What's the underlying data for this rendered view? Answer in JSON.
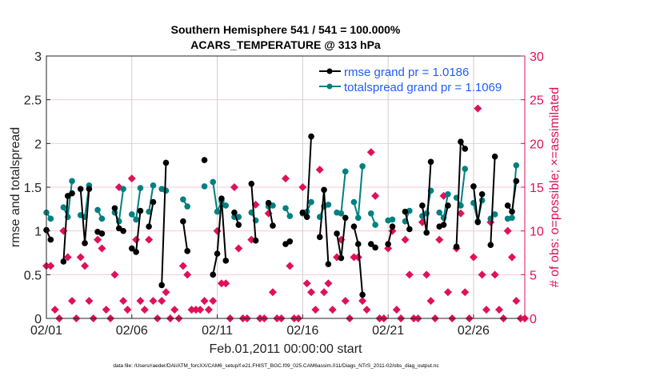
{
  "chart_data": {
    "type": "line",
    "title": [
      "Southern Hemisphere 541 / 541 = 100.000%",
      "ACARS_TEMPERATURE @ 313 hPa"
    ],
    "xlabel": "Feb.01,2011 00:00:00 start",
    "ylabel": "rmse and totalspread",
    "ylabel_right": "# of obs: o=possible; ×=assimilated",
    "footnote": "data file: /Users/raeder/DAI/ATM_forcXX/CAM6_setup/f.e21.FHIST_BGC.f09_025.CAM6assim.011/Diags_NTrS_2011-02/obs_diag_output.nc",
    "xlim": [
      "02/01 00:00",
      "03/01 00:00"
    ],
    "ylim": [
      0,
      3
    ],
    "ylim_right": [
      0,
      30
    ],
    "xticks": [
      "02/01",
      "02/06",
      "02/11",
      "02/16",
      "02/21",
      "02/26"
    ],
    "yticks": [
      "0",
      "0.5",
      "1",
      "1.5",
      "2",
      "2.5",
      "3"
    ],
    "yticks_right": [
      "0",
      "5",
      "10",
      "15",
      "20",
      "25",
      "30"
    ],
    "grid": true,
    "legend_placement": "top-right",
    "colors": {
      "rmse": "#000000",
      "totalspread": "#008080",
      "obs": "#e0105a",
      "legend_text": "#1f5cff",
      "grid_h": "#f6c8d8",
      "grid_v": "#d0d0d0"
    },
    "x": [
      "02/01 00:00",
      "02/01 06:00",
      "02/01 12:00",
      "02/01 18:00",
      "02/02 00:00",
      "02/02 06:00",
      "02/02 12:00",
      "02/02 18:00",
      "02/03 00:00",
      "02/03 06:00",
      "02/03 12:00",
      "02/03 18:00",
      "02/04 00:00",
      "02/04 06:00",
      "02/04 12:00",
      "02/04 18:00",
      "02/05 00:00",
      "02/05 06:00",
      "02/05 12:00",
      "02/05 18:00",
      "02/06 00:00",
      "02/06 06:00",
      "02/06 12:00",
      "02/06 18:00",
      "02/07 00:00",
      "02/07 06:00",
      "02/07 12:00",
      "02/07 18:00",
      "02/08 00:00",
      "02/08 06:00",
      "02/08 12:00",
      "02/08 18:00",
      "02/09 00:00",
      "02/09 06:00",
      "02/09 12:00",
      "02/09 18:00",
      "02/10 00:00",
      "02/10 06:00",
      "02/10 12:00",
      "02/10 18:00",
      "02/11 00:00",
      "02/11 06:00",
      "02/11 12:00",
      "02/11 18:00",
      "02/12 00:00",
      "02/12 06:00",
      "02/12 12:00",
      "02/12 18:00",
      "02/13 00:00",
      "02/13 06:00",
      "02/13 12:00",
      "02/13 18:00",
      "02/14 00:00",
      "02/14 06:00",
      "02/14 12:00",
      "02/14 18:00",
      "02/15 00:00",
      "02/15 06:00",
      "02/15 12:00",
      "02/15 18:00",
      "02/16 00:00",
      "02/16 06:00",
      "02/16 12:00",
      "02/16 18:00",
      "02/17 00:00",
      "02/17 06:00",
      "02/17 12:00",
      "02/17 18:00",
      "02/18 00:00",
      "02/18 06:00",
      "02/18 12:00",
      "02/18 18:00",
      "02/19 00:00",
      "02/19 06:00",
      "02/19 12:00",
      "02/19 18:00",
      "02/20 00:00",
      "02/20 06:00",
      "02/20 12:00",
      "02/20 18:00",
      "02/21 00:00",
      "02/21 06:00",
      "02/21 12:00",
      "02/21 18:00",
      "02/22 00:00",
      "02/22 06:00",
      "02/22 12:00",
      "02/22 18:00",
      "02/23 00:00",
      "02/23 06:00",
      "02/23 12:00",
      "02/23 18:00",
      "02/24 00:00",
      "02/24 06:00",
      "02/24 12:00",
      "02/24 18:00",
      "02/25 00:00",
      "02/25 06:00",
      "02/25 12:00",
      "02/25 18:00",
      "02/26 00:00",
      "02/26 06:00",
      "02/26 12:00",
      "02/26 18:00",
      "02/27 00:00",
      "02/27 06:00",
      "02/27 12:00",
      "02/27 18:00",
      "02/28 00:00",
      "02/28 06:00",
      "02/28 12:00",
      "02/28 18:00",
      "03/01 00:00"
    ],
    "series": [
      {
        "name": "rmse grand pr = 1.0186",
        "axis": "left",
        "marker": "circle",
        "values": [
          1.01,
          0.9,
          null,
          null,
          0.65,
          1.4,
          1.43,
          null,
          1.48,
          0.86,
          1.48,
          null,
          0.99,
          0.97,
          null,
          null,
          1.26,
          1.03,
          1.0,
          null,
          0.8,
          0.76,
          1.23,
          null,
          1.05,
          1.33,
          null,
          0.38,
          1.78,
          null,
          null,
          null,
          1.11,
          0.77,
          null,
          null,
          null,
          1.81,
          null,
          0.5,
          0.74,
          1.37,
          0.66,
          null,
          1.21,
          1.07,
          null,
          null,
          1.54,
          0.89,
          null,
          null,
          1.32,
          1.06,
          null,
          null,
          0.85,
          0.88,
          null,
          null,
          1.21,
          1.16,
          2.08,
          null,
          0.93,
          1.47,
          0.62,
          null,
          0.97,
          0.69,
          1.15,
          null,
          1.05,
          0.85,
          0.27,
          null,
          0.85,
          0.81,
          null,
          null,
          0.85,
          1.05,
          null,
          null,
          1.22,
          1.02,
          null,
          null,
          1.29,
          0.98,
          1.79,
          null,
          1.05,
          1.07,
          1.29,
          null,
          0.82,
          2.02,
          1.94,
          null,
          1.51,
          1.1,
          1.42,
          null,
          0.84,
          1.85,
          null,
          null,
          1.29,
          1.22,
          1.57,
          null,
          null
        ]
      },
      {
        "name": "totalspread grand pr = 1.1069",
        "axis": "left",
        "marker": "circle",
        "values": [
          1.21,
          1.14,
          null,
          null,
          1.27,
          1.16,
          1.57,
          null,
          1.18,
          1.16,
          1.52,
          null,
          1.24,
          1.14,
          null,
          null,
          1.21,
          1.11,
          1.48,
          null,
          1.19,
          1.13,
          1.49,
          null,
          1.22,
          1.52,
          null,
          1.48,
          1.46,
          null,
          null,
          null,
          1.36,
          1.28,
          null,
          null,
          null,
          1.51,
          null,
          1.56,
          1.22,
          1.34,
          1.29,
          null,
          1.16,
          1.16,
          null,
          null,
          1.21,
          1.12,
          null,
          null,
          1.28,
          1.29,
          null,
          null,
          1.26,
          1.17,
          null,
          null,
          1.2,
          1.22,
          1.33,
          null,
          1.16,
          1.28,
          1.3,
          null,
          1.21,
          1.2,
          1.68,
          null,
          1.33,
          1.15,
          1.74,
          null,
          1.2,
          1.07,
          null,
          null,
          1.12,
          1.13,
          null,
          null,
          1.11,
          1.23,
          null,
          null,
          1.17,
          1.2,
          1.46,
          null,
          1.21,
          1.15,
          1.42,
          null,
          1.38,
          1.29,
          1.71,
          null,
          1.32,
          1.11,
          1.35,
          null,
          1.14,
          1.19,
          null,
          null,
          1.14,
          1.15,
          1.75,
          null,
          null
        ]
      },
      {
        "axis": "right",
        "marker": "diamond",
        "values": [
          6,
          6,
          1,
          0,
          10,
          7,
          2,
          0,
          7,
          6,
          2,
          0,
          9,
          8,
          1,
          0,
          5,
          15,
          2,
          1,
          16,
          9,
          2,
          1,
          9,
          2,
          0,
          2,
          3,
          0,
          1,
          0,
          6,
          5,
          1,
          1,
          1,
          2,
          1,
          2,
          10,
          4,
          4,
          0,
          15,
          8,
          0,
          0,
          9,
          13,
          0,
          0,
          12,
          3,
          0,
          0,
          16,
          6,
          0,
          0,
          15,
          4,
          3,
          1,
          17,
          3,
          4,
          1,
          7,
          9,
          2,
          0,
          7,
          7,
          2,
          1,
          19,
          14,
          0,
          0,
          8,
          10,
          1,
          0,
          9,
          5,
          0,
          0,
          11,
          5,
          2,
          0,
          9,
          14,
          3,
          0,
          8,
          12,
          3,
          0,
          7,
          24,
          5,
          1,
          11,
          5,
          1,
          0,
          10,
          7,
          2,
          0,
          0
        ]
      }
    ]
  }
}
